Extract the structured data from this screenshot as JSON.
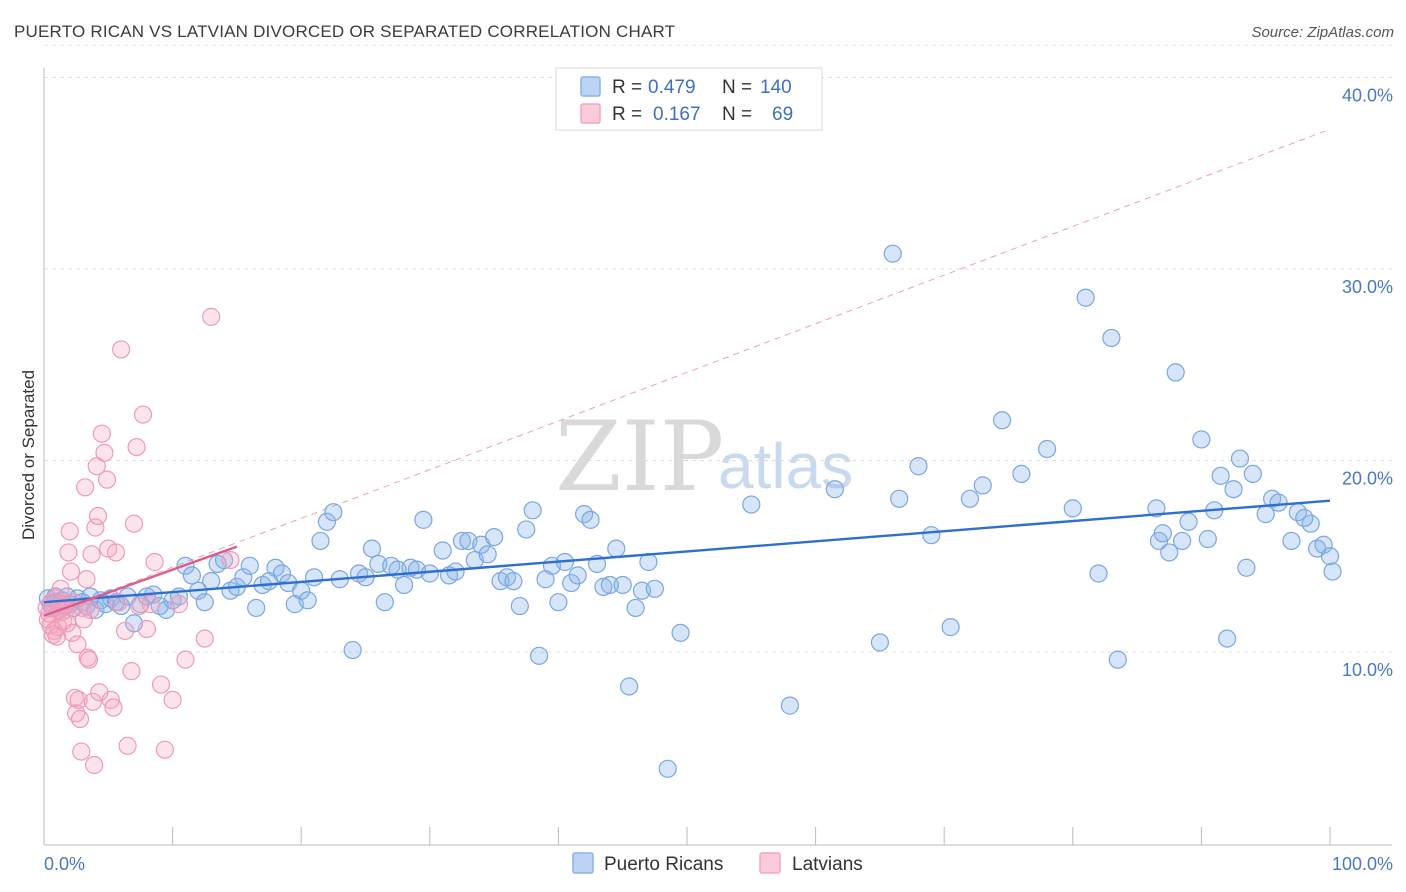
{
  "header": {
    "title": "PUERTO RICAN VS LATVIAN DIVORCED OR SEPARATED CORRELATION CHART",
    "source": "Source: ZipAtlas.com"
  },
  "watermark": {
    "zip": "ZIP",
    "atlas": "atlas"
  },
  "legend": {
    "rows": [
      {
        "r_label": "R =",
        "r_value": "0.479",
        "n_label": "N =",
        "n_value": "140",
        "color": "#8ab4e8"
      },
      {
        "r_label": "R =",
        "r_value": "0.167",
        "n_label": "N =",
        "n_value": "69",
        "color": "#f4a6c0"
      }
    ]
  },
  "chart_data": {
    "type": "scatter",
    "title": "PUERTO RICAN VS LATVIAN DIVORCED OR SEPARATED CORRELATION CHART",
    "xlabel": "",
    "ylabel": "Divorced or Separated",
    "xlim": [
      0,
      100
    ],
    "ylim": [
      0,
      42
    ],
    "x_tick_labels": [
      {
        "value": 0,
        "label": "0.0%"
      },
      {
        "value": 100,
        "label": "100.0%"
      }
    ],
    "y_tick_labels": [
      {
        "value": 10,
        "label": "10.0%"
      },
      {
        "value": 20,
        "label": "20.0%"
      },
      {
        "value": 30,
        "label": "30.0%"
      },
      {
        "value": 40,
        "label": "40.0%"
      }
    ],
    "grid": true,
    "legend_position": "top-center",
    "series": [
      {
        "name": "Puerto Ricans",
        "color": "#8ab4e8",
        "line_color": "#2f6fd0",
        "trend": {
          "x": [
            0,
            100
          ],
          "y": [
            12.6,
            17.9
          ]
        },
        "points": [
          [
            0.3,
            12.8
          ],
          [
            0.5,
            12.5
          ],
          [
            0.7,
            12.3
          ],
          [
            0.9,
            12.9
          ],
          [
            1.0,
            12.6
          ],
          [
            1.2,
            12.2
          ],
          [
            1.4,
            12.7
          ],
          [
            1.6,
            12.4
          ],
          [
            1.8,
            12.9
          ],
          [
            2.0,
            12.5
          ],
          [
            2.3,
            12.3
          ],
          [
            2.6,
            12.8
          ],
          [
            3.0,
            12.6
          ],
          [
            3.3,
            12.4
          ],
          [
            3.6,
            12.9
          ],
          [
            4.0,
            12.2
          ],
          [
            4.4,
            12.7
          ],
          [
            4.8,
            12.5
          ],
          [
            5.2,
            12.8
          ],
          [
            5.6,
            12.6
          ],
          [
            6.0,
            12.4
          ],
          [
            6.5,
            12.9
          ],
          [
            7.0,
            11.5
          ],
          [
            7.5,
            12.5
          ],
          [
            8.0,
            12.9
          ],
          [
            8.5,
            13.0
          ],
          [
            9.0,
            12.4
          ],
          [
            9.5,
            12.2
          ],
          [
            10.0,
            12.7
          ],
          [
            10.5,
            12.9
          ],
          [
            11.0,
            14.5
          ],
          [
            11.5,
            14.0
          ],
          [
            12.0,
            13.2
          ],
          [
            12.5,
            12.6
          ],
          [
            13.0,
            13.7
          ],
          [
            13.5,
            14.6
          ],
          [
            14.0,
            14.8
          ],
          [
            14.5,
            13.2
          ],
          [
            15.0,
            13.4
          ],
          [
            15.5,
            13.9
          ],
          [
            16.0,
            14.5
          ],
          [
            16.5,
            12.3
          ],
          [
            17.0,
            13.5
          ],
          [
            17.5,
            13.7
          ],
          [
            18.0,
            14.4
          ],
          [
            18.5,
            14.1
          ],
          [
            19.0,
            13.6
          ],
          [
            19.5,
            12.5
          ],
          [
            20.0,
            13.2
          ],
          [
            20.5,
            12.7
          ],
          [
            21.0,
            13.9
          ],
          [
            21.5,
            15.8
          ],
          [
            22.0,
            16.8
          ],
          [
            22.5,
            17.3
          ],
          [
            23.0,
            13.8
          ],
          [
            24.0,
            10.1
          ],
          [
            24.5,
            14.1
          ],
          [
            25.0,
            13.9
          ],
          [
            25.5,
            15.4
          ],
          [
            26.0,
            14.6
          ],
          [
            26.5,
            12.6
          ],
          [
            27.0,
            14.5
          ],
          [
            27.5,
            14.3
          ],
          [
            28.0,
            13.5
          ],
          [
            28.5,
            14.4
          ],
          [
            29.0,
            14.3
          ],
          [
            29.5,
            16.9
          ],
          [
            30.0,
            14.1
          ],
          [
            31.0,
            15.3
          ],
          [
            31.5,
            14.0
          ],
          [
            32.0,
            14.2
          ],
          [
            32.5,
            15.8
          ],
          [
            33.0,
            15.8
          ],
          [
            33.5,
            14.8
          ],
          [
            34.0,
            15.6
          ],
          [
            34.5,
            15.1
          ],
          [
            35.0,
            16.0
          ],
          [
            35.5,
            13.7
          ],
          [
            36.0,
            13.9
          ],
          [
            36.5,
            13.7
          ],
          [
            37.0,
            12.4
          ],
          [
            37.5,
            16.4
          ],
          [
            38.0,
            17.4
          ],
          [
            38.5,
            9.8
          ],
          [
            39.0,
            13.8
          ],
          [
            39.5,
            14.5
          ],
          [
            40.0,
            12.6
          ],
          [
            40.5,
            14.7
          ],
          [
            41.0,
            13.6
          ],
          [
            41.5,
            14.0
          ],
          [
            42.0,
            17.2
          ],
          [
            42.5,
            16.9
          ],
          [
            43.0,
            14.6
          ],
          [
            43.5,
            13.4
          ],
          [
            44.0,
            13.5
          ],
          [
            44.5,
            15.4
          ],
          [
            45.0,
            13.5
          ],
          [
            45.5,
            8.2
          ],
          [
            46.0,
            12.3
          ],
          [
            46.5,
            13.2
          ],
          [
            47.0,
            14.7
          ],
          [
            47.5,
            13.3
          ],
          [
            48.5,
            3.9
          ],
          [
            49.5,
            11.0
          ],
          [
            55.0,
            17.7
          ],
          [
            58.0,
            7.2
          ],
          [
            61.5,
            18.5
          ],
          [
            65.0,
            10.5
          ],
          [
            66.0,
            30.8
          ],
          [
            66.5,
            18.0
          ],
          [
            68.0,
            19.7
          ],
          [
            69.0,
            16.1
          ],
          [
            70.5,
            11.3
          ],
          [
            72.0,
            18.0
          ],
          [
            73.0,
            18.7
          ],
          [
            74.5,
            22.1
          ],
          [
            76.0,
            19.3
          ],
          [
            78.0,
            20.6
          ],
          [
            80.0,
            17.5
          ],
          [
            81.0,
            28.5
          ],
          [
            82.0,
            14.1
          ],
          [
            83.0,
            26.4
          ],
          [
            83.5,
            9.6
          ],
          [
            86.5,
            17.5
          ],
          [
            86.7,
            15.8
          ],
          [
            87.0,
            16.2
          ],
          [
            87.5,
            15.2
          ],
          [
            88.0,
            24.6
          ],
          [
            88.5,
            15.8
          ],
          [
            89.0,
            16.8
          ],
          [
            90.0,
            21.1
          ],
          [
            90.5,
            15.9
          ],
          [
            91.0,
            17.4
          ],
          [
            91.5,
            19.2
          ],
          [
            92.0,
            10.7
          ],
          [
            92.5,
            18.5
          ],
          [
            93.0,
            20.1
          ],
          [
            93.5,
            14.4
          ],
          [
            94.0,
            19.3
          ],
          [
            95.0,
            17.2
          ],
          [
            95.5,
            18.0
          ],
          [
            96.0,
            17.8
          ],
          [
            97.0,
            15.8
          ],
          [
            97.5,
            17.3
          ],
          [
            98.5,
            16.7
          ],
          [
            99.0,
            15.4
          ],
          [
            99.5,
            15.6
          ],
          [
            100.0,
            15.0
          ],
          [
            100.2,
            14.2
          ],
          [
            98.0,
            17.0
          ]
        ]
      },
      {
        "name": "Latvians",
        "color": "#f4a6c0",
        "line_color": "#e05a8a",
        "trend": {
          "x": [
            0,
            15
          ],
          "y": [
            11.9,
            15.5
          ]
        },
        "trend_extended": {
          "x": [
            0,
            100
          ],
          "y": [
            11.9,
            37.3
          ]
        },
        "points": [
          [
            0.2,
            12.3
          ],
          [
            0.3,
            11.7
          ],
          [
            0.4,
            12.0
          ],
          [
            0.5,
            11.4
          ],
          [
            0.6,
            12.6
          ],
          [
            0.7,
            10.9
          ],
          [
            0.8,
            11.1
          ],
          [
            0.9,
            12.8
          ],
          [
            1.0,
            10.8
          ],
          [
            1.1,
            11.3
          ],
          [
            1.2,
            12.4
          ],
          [
            1.3,
            13.3
          ],
          [
            1.4,
            12.1
          ],
          [
            1.5,
            11.6
          ],
          [
            1.6,
            12.5
          ],
          [
            1.7,
            12.2
          ],
          [
            1.8,
            11.5
          ],
          [
            1.9,
            15.2
          ],
          [
            2.0,
            16.3
          ],
          [
            2.1,
            14.2
          ],
          [
            2.2,
            11.0
          ],
          [
            2.3,
            12.6
          ],
          [
            2.4,
            7.6
          ],
          [
            2.5,
            6.8
          ],
          [
            2.6,
            10.4
          ],
          [
            2.7,
            7.5
          ],
          [
            2.8,
            6.5
          ],
          [
            2.9,
            4.8
          ],
          [
            3.0,
            12.3
          ],
          [
            3.1,
            11.7
          ],
          [
            3.2,
            18.6
          ],
          [
            3.3,
            13.8
          ],
          [
            3.4,
            9.7
          ],
          [
            3.5,
            9.6
          ],
          [
            3.6,
            12.2
          ],
          [
            3.7,
            15.1
          ],
          [
            3.8,
            7.4
          ],
          [
            3.9,
            4.1
          ],
          [
            4.0,
            16.5
          ],
          [
            4.1,
            19.7
          ],
          [
            4.2,
            17.1
          ],
          [
            4.3,
            7.9
          ],
          [
            4.5,
            21.4
          ],
          [
            4.7,
            20.4
          ],
          [
            4.9,
            19.0
          ],
          [
            5.0,
            15.4
          ],
          [
            5.2,
            7.5
          ],
          [
            5.4,
            7.1
          ],
          [
            5.6,
            15.2
          ],
          [
            5.8,
            12.6
          ],
          [
            6.0,
            25.8
          ],
          [
            6.3,
            11.1
          ],
          [
            6.5,
            5.1
          ],
          [
            6.8,
            9.0
          ],
          [
            7.0,
            16.7
          ],
          [
            7.2,
            20.7
          ],
          [
            7.4,
            12.4
          ],
          [
            7.7,
            22.4
          ],
          [
            8.0,
            11.2
          ],
          [
            8.3,
            12.5
          ],
          [
            8.6,
            14.7
          ],
          [
            9.1,
            8.3
          ],
          [
            9.4,
            4.9
          ],
          [
            10.0,
            7.5
          ],
          [
            10.5,
            12.5
          ],
          [
            11.0,
            9.6
          ],
          [
            12.5,
            10.7
          ],
          [
            13.0,
            27.5
          ],
          [
            14.5,
            14.8
          ]
        ]
      }
    ]
  },
  "bottom_legend": {
    "items": [
      {
        "label": "Puerto Ricans",
        "color": "#8ab4e8"
      },
      {
        "label": "Latvians",
        "color": "#f4a6c0"
      }
    ]
  }
}
